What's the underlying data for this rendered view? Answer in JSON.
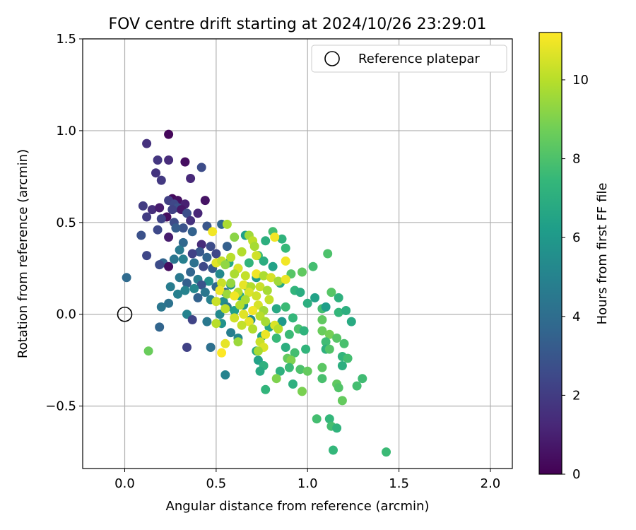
{
  "chart_data": {
    "type": "scatter",
    "title": "FOV centre drift starting at 2024/10/26 23:29:01",
    "xlabel": "Angular distance from reference (arcmin)",
    "ylabel": "Rotation from reference (arcmin)",
    "xlim": [
      -0.23,
      2.12
    ],
    "ylim": [
      -0.84,
      1.5
    ],
    "x_ticks": [
      0.0,
      0.5,
      1.0,
      1.5,
      2.0
    ],
    "x_tick_labels": [
      "0.0",
      "0.5",
      "1.0",
      "1.5",
      "2.0"
    ],
    "y_ticks": [
      -0.5,
      0.0,
      0.5,
      1.0,
      1.5
    ],
    "y_tick_labels": [
      "−0.5",
      "0.0",
      "0.5",
      "1.0",
      "1.5"
    ],
    "grid": true,
    "legend": {
      "position": "top-right",
      "entries": [
        {
          "label": "Reference platepar",
          "marker": "open-circle"
        }
      ]
    },
    "reference_point": {
      "x": 0.0,
      "y": 0.0
    },
    "colorbar": {
      "label": "Hours from first FF file",
      "colormap": "viridis",
      "range": [
        0,
        11.2
      ],
      "ticks": [
        0,
        2,
        4,
        6,
        8,
        10
      ],
      "tick_labels": [
        "0",
        "2",
        "4",
        "6",
        "8",
        "10"
      ]
    },
    "points": [
      {
        "x": 0.24,
        "y": 0.98,
        "h": 0.2
      },
      {
        "x": 0.12,
        "y": 0.93,
        "h": 1.6
      },
      {
        "x": 0.33,
        "y": 0.83,
        "h": 0.4
      },
      {
        "x": 0.18,
        "y": 0.84,
        "h": 1.8
      },
      {
        "x": 0.24,
        "y": 0.84,
        "h": 1.4
      },
      {
        "x": 0.42,
        "y": 0.8,
        "h": 2.6
      },
      {
        "x": 0.17,
        "y": 0.77,
        "h": 1.7
      },
      {
        "x": 0.2,
        "y": 0.73,
        "h": 1.9
      },
      {
        "x": 0.36,
        "y": 0.74,
        "h": 1.3
      },
      {
        "x": 0.26,
        "y": 0.63,
        "h": 0.3
      },
      {
        "x": 0.44,
        "y": 0.62,
        "h": 0.6
      },
      {
        "x": 0.29,
        "y": 0.62,
        "h": 0.5
      },
      {
        "x": 0.24,
        "y": 0.62,
        "h": 2.1
      },
      {
        "x": 0.27,
        "y": 0.6,
        "h": 2.4
      },
      {
        "x": 0.33,
        "y": 0.6,
        "h": 1.0
      },
      {
        "x": 0.1,
        "y": 0.59,
        "h": 2.0
      },
      {
        "x": 0.29,
        "y": 0.58,
        "h": 2.8
      },
      {
        "x": 0.15,
        "y": 0.57,
        "h": 1.5
      },
      {
        "x": 0.19,
        "y": 0.58,
        "h": 0.9
      },
      {
        "x": 0.26,
        "y": 0.57,
        "h": 2.2
      },
      {
        "x": 0.31,
        "y": 0.57,
        "h": 0.7
      },
      {
        "x": 0.4,
        "y": 0.55,
        "h": 1.2
      },
      {
        "x": 0.12,
        "y": 0.53,
        "h": 2.0
      },
      {
        "x": 0.23,
        "y": 0.53,
        "h": 0.4
      },
      {
        "x": 0.34,
        "y": 0.55,
        "h": 2.7
      },
      {
        "x": 0.2,
        "y": 0.52,
        "h": 2.3
      },
      {
        "x": 0.36,
        "y": 0.51,
        "h": 1.6
      },
      {
        "x": 0.27,
        "y": 0.5,
        "h": 2.6
      },
      {
        "x": 0.45,
        "y": 0.48,
        "h": 3.0
      },
      {
        "x": 0.53,
        "y": 0.49,
        "h": 3.7
      },
      {
        "x": 0.32,
        "y": 0.47,
        "h": 2.9
      },
      {
        "x": 0.18,
        "y": 0.46,
        "h": 2.5
      },
      {
        "x": 0.28,
        "y": 0.47,
        "h": 3.3
      },
      {
        "x": 0.37,
        "y": 0.45,
        "h": 3.5
      },
      {
        "x": 0.09,
        "y": 0.43,
        "h": 2.8
      },
      {
        "x": 0.24,
        "y": 0.42,
        "h": 0.9
      },
      {
        "x": 0.42,
        "y": 0.38,
        "h": 1.4
      },
      {
        "x": 0.32,
        "y": 0.39,
        "h": 3.8
      },
      {
        "x": 0.47,
        "y": 0.37,
        "h": 2.6
      },
      {
        "x": 0.56,
        "y": 0.37,
        "h": 3.4
      },
      {
        "x": 0.3,
        "y": 0.35,
        "h": 4.6
      },
      {
        "x": 0.41,
        "y": 0.34,
        "h": 3.1
      },
      {
        "x": 0.5,
        "y": 0.33,
        "h": 2.4
      },
      {
        "x": 0.12,
        "y": 0.32,
        "h": 2.4
      },
      {
        "x": 0.37,
        "y": 0.33,
        "h": 2.2
      },
      {
        "x": 0.45,
        "y": 0.31,
        "h": 3.6
      },
      {
        "x": 0.27,
        "y": 0.3,
        "h": 4.4
      },
      {
        "x": 0.32,
        "y": 0.3,
        "h": 4.9
      },
      {
        "x": 0.38,
        "y": 0.28,
        "h": 4.1
      },
      {
        "x": 0.21,
        "y": 0.28,
        "h": 3.6
      },
      {
        "x": 0.19,
        "y": 0.27,
        "h": 2.6
      },
      {
        "x": 0.24,
        "y": 0.26,
        "h": 0.4
      },
      {
        "x": 0.43,
        "y": 0.26,
        "h": 2.5
      },
      {
        "x": 0.48,
        "y": 0.25,
        "h": 3.2
      },
      {
        "x": 0.36,
        "y": 0.23,
        "h": 3.6
      },
      {
        "x": 0.52,
        "y": 0.22,
        "h": 5.3
      },
      {
        "x": 0.3,
        "y": 0.2,
        "h": 4.5
      },
      {
        "x": 0.01,
        "y": 0.2,
        "h": 3.9
      },
      {
        "x": 0.4,
        "y": 0.19,
        "h": 4.8
      },
      {
        "x": 0.46,
        "y": 0.18,
        "h": 5.6
      },
      {
        "x": 0.34,
        "y": 0.17,
        "h": 3.4
      },
      {
        "x": 0.42,
        "y": 0.16,
        "h": 2.9
      },
      {
        "x": 0.5,
        "y": 0.15,
        "h": 3.8
      },
      {
        "x": 0.25,
        "y": 0.15,
        "h": 4.7
      },
      {
        "x": 0.38,
        "y": 0.14,
        "h": 5.2
      },
      {
        "x": 0.33,
        "y": 0.13,
        "h": 5.0
      },
      {
        "x": 0.44,
        "y": 0.12,
        "h": 4.4
      },
      {
        "x": 0.55,
        "y": 0.12,
        "h": 3.9
      },
      {
        "x": 0.29,
        "y": 0.11,
        "h": 4.9
      },
      {
        "x": 0.4,
        "y": 0.09,
        "h": 3.5
      },
      {
        "x": 0.47,
        "y": 0.08,
        "h": 4.9
      },
      {
        "x": 0.54,
        "y": 0.07,
        "h": 5.5
      },
      {
        "x": 0.24,
        "y": 0.06,
        "h": 4.2
      },
      {
        "x": 0.2,
        "y": 0.04,
        "h": 4.4
      },
      {
        "x": 0.56,
        "y": 0.04,
        "h": 4.6
      },
      {
        "x": 0.34,
        "y": 0.0,
        "h": 5.0
      },
      {
        "x": 0.52,
        "y": 0.0,
        "h": 5.3
      },
      {
        "x": 0.37,
        "y": -0.03,
        "h": 2.3
      },
      {
        "x": 0.45,
        "y": -0.04,
        "h": 4.5
      },
      {
        "x": 0.19,
        "y": -0.07,
        "h": 3.6
      },
      {
        "x": 0.34,
        "y": -0.18,
        "h": 2.2
      },
      {
        "x": 0.47,
        "y": -0.18,
        "h": 4.1
      },
      {
        "x": 0.13,
        "y": -0.2,
        "h": 8.6
      },
      {
        "x": 0.55,
        "y": -0.33,
        "h": 5.0
      },
      {
        "x": 0.53,
        "y": -0.05,
        "h": 5.7
      },
      {
        "x": 0.58,
        "y": -0.1,
        "h": 4.8
      },
      {
        "x": 0.62,
        "y": -0.13,
        "h": 5.2
      },
      {
        "x": 0.6,
        "y": 0.02,
        "h": 6.2
      },
      {
        "x": 0.65,
        "y": 0.05,
        "h": 5.8
      },
      {
        "x": 0.69,
        "y": -0.03,
        "h": 5.3
      },
      {
        "x": 0.63,
        "y": 0.1,
        "h": 6.6
      },
      {
        "x": 0.58,
        "y": 0.16,
        "h": 5.6
      },
      {
        "x": 0.67,
        "y": 0.15,
        "h": 7.0
      },
      {
        "x": 0.72,
        "y": 0.2,
        "h": 6.1
      },
      {
        "x": 0.62,
        "y": 0.25,
        "h": 6.4
      },
      {
        "x": 0.68,
        "y": 0.28,
        "h": 7.3
      },
      {
        "x": 0.57,
        "y": 0.28,
        "h": 6.8
      },
      {
        "x": 0.73,
        "y": 0.32,
        "h": 7.6
      },
      {
        "x": 0.66,
        "y": 0.43,
        "h": 6.3
      },
      {
        "x": 0.77,
        "y": 0.4,
        "h": 7.0
      },
      {
        "x": 0.81,
        "y": 0.45,
        "h": 7.8
      },
      {
        "x": 0.86,
        "y": 0.41,
        "h": 7.2
      },
      {
        "x": 0.88,
        "y": 0.36,
        "h": 7.5
      },
      {
        "x": 0.76,
        "y": 0.29,
        "h": 6.9
      },
      {
        "x": 0.81,
        "y": 0.26,
        "h": 6.4
      },
      {
        "x": 0.91,
        "y": 0.22,
        "h": 8.2
      },
      {
        "x": 0.97,
        "y": 0.23,
        "h": 8.4
      },
      {
        "x": 1.03,
        "y": 0.26,
        "h": 7.8
      },
      {
        "x": 1.11,
        "y": 0.33,
        "h": 8.0
      },
      {
        "x": 0.85,
        "y": 0.17,
        "h": 6.6
      },
      {
        "x": 0.93,
        "y": 0.13,
        "h": 7.3
      },
      {
        "x": 0.96,
        "y": 0.12,
        "h": 6.9
      },
      {
        "x": 1.13,
        "y": 0.12,
        "h": 8.2
      },
      {
        "x": 1.17,
        "y": 0.09,
        "h": 7.1
      },
      {
        "x": 1.04,
        "y": 0.09,
        "h": 6.4
      },
      {
        "x": 1.0,
        "y": 0.06,
        "h": 7.0
      },
      {
        "x": 0.88,
        "y": 0.04,
        "h": 7.6
      },
      {
        "x": 0.83,
        "y": 0.03,
        "h": 6.7
      },
      {
        "x": 1.08,
        "y": 0.03,
        "h": 7.8
      },
      {
        "x": 1.1,
        "y": 0.04,
        "h": 6.2
      },
      {
        "x": 1.17,
        "y": 0.01,
        "h": 7.4
      },
      {
        "x": 1.21,
        "y": 0.02,
        "h": 7.0
      },
      {
        "x": 0.92,
        "y": -0.02,
        "h": 7.4
      },
      {
        "x": 0.86,
        "y": -0.04,
        "h": 6.0
      },
      {
        "x": 1.08,
        "y": -0.03,
        "h": 8.4
      },
      {
        "x": 1.24,
        "y": -0.04,
        "h": 6.8
      },
      {
        "x": 0.79,
        "y": -0.07,
        "h": 6.5
      },
      {
        "x": 0.95,
        "y": -0.08,
        "h": 8.0
      },
      {
        "x": 0.98,
        "y": -0.09,
        "h": 7.2
      },
      {
        "x": 1.08,
        "y": -0.09,
        "h": 8.6
      },
      {
        "x": 1.12,
        "y": -0.11,
        "h": 8.8
      },
      {
        "x": 0.75,
        "y": -0.12,
        "h": 6.3
      },
      {
        "x": 0.83,
        "y": -0.13,
        "h": 7.5
      },
      {
        "x": 0.9,
        "y": -0.11,
        "h": 7.6
      },
      {
        "x": 1.16,
        "y": -0.13,
        "h": 8.2
      },
      {
        "x": 1.1,
        "y": -0.15,
        "h": 7.7
      },
      {
        "x": 1.2,
        "y": -0.16,
        "h": 7.9
      },
      {
        "x": 0.88,
        "y": -0.18,
        "h": 7.0
      },
      {
        "x": 0.99,
        "y": -0.19,
        "h": 7.3
      },
      {
        "x": 1.1,
        "y": -0.19,
        "h": 7.1
      },
      {
        "x": 1.12,
        "y": -0.19,
        "h": 8.1
      },
      {
        "x": 0.93,
        "y": -0.21,
        "h": 7.8
      },
      {
        "x": 0.72,
        "y": -0.2,
        "h": 6.6
      },
      {
        "x": 1.19,
        "y": -0.23,
        "h": 7.3
      },
      {
        "x": 1.22,
        "y": -0.24,
        "h": 7.8
      },
      {
        "x": 0.89,
        "y": -0.24,
        "h": 8.5
      },
      {
        "x": 0.91,
        "y": -0.25,
        "h": 9.0
      },
      {
        "x": 0.73,
        "y": -0.25,
        "h": 6.4
      },
      {
        "x": 0.76,
        "y": -0.28,
        "h": 7.1
      },
      {
        "x": 1.19,
        "y": -0.28,
        "h": 7.0
      },
      {
        "x": 1.08,
        "y": -0.29,
        "h": 8.3
      },
      {
        "x": 0.9,
        "y": -0.29,
        "h": 7.6
      },
      {
        "x": 0.96,
        "y": -0.3,
        "h": 8.0
      },
      {
        "x": 0.85,
        "y": -0.31,
        "h": 7.1
      },
      {
        "x": 1.0,
        "y": -0.31,
        "h": 8.5
      },
      {
        "x": 0.74,
        "y": -0.31,
        "h": 6.8
      },
      {
        "x": 1.08,
        "y": -0.35,
        "h": 7.9
      },
      {
        "x": 1.3,
        "y": -0.35,
        "h": 7.7
      },
      {
        "x": 0.83,
        "y": -0.35,
        "h": 9.0
      },
      {
        "x": 1.16,
        "y": -0.38,
        "h": 8.4
      },
      {
        "x": 0.92,
        "y": -0.38,
        "h": 7.1
      },
      {
        "x": 1.27,
        "y": -0.39,
        "h": 7.8
      },
      {
        "x": 1.17,
        "y": -0.4,
        "h": 8.1
      },
      {
        "x": 0.77,
        "y": -0.41,
        "h": 7.3
      },
      {
        "x": 0.97,
        "y": -0.42,
        "h": 8.9
      },
      {
        "x": 1.19,
        "y": -0.47,
        "h": 8.5
      },
      {
        "x": 1.05,
        "y": -0.57,
        "h": 7.8
      },
      {
        "x": 1.12,
        "y": -0.57,
        "h": 7.4
      },
      {
        "x": 1.13,
        "y": -0.61,
        "h": 7.8
      },
      {
        "x": 1.16,
        "y": -0.62,
        "h": 7.2
      },
      {
        "x": 1.14,
        "y": -0.74,
        "h": 7.4
      },
      {
        "x": 1.43,
        "y": -0.75,
        "h": 7.6
      },
      {
        "x": 0.48,
        "y": 0.45,
        "h": 11.0
      },
      {
        "x": 0.56,
        "y": 0.49,
        "h": 9.8
      },
      {
        "x": 0.68,
        "y": 0.43,
        "h": 9.6
      },
      {
        "x": 0.6,
        "y": 0.42,
        "h": 9.2
      },
      {
        "x": 0.82,
        "y": 0.42,
        "h": 11.0
      },
      {
        "x": 0.7,
        "y": 0.4,
        "h": 10.1
      },
      {
        "x": 0.71,
        "y": 0.37,
        "h": 9.7
      },
      {
        "x": 0.64,
        "y": 0.34,
        "h": 9.9
      },
      {
        "x": 0.72,
        "y": 0.32,
        "h": 10.4
      },
      {
        "x": 0.58,
        "y": 0.31,
        "h": 10.0
      },
      {
        "x": 0.5,
        "y": 0.28,
        "h": 10.7
      },
      {
        "x": 0.53,
        "y": 0.29,
        "h": 10.2
      },
      {
        "x": 0.55,
        "y": 0.27,
        "h": 9.3
      },
      {
        "x": 0.88,
        "y": 0.29,
        "h": 11.0
      },
      {
        "x": 0.62,
        "y": 0.25,
        "h": 10.6
      },
      {
        "x": 0.6,
        "y": 0.22,
        "h": 9.8
      },
      {
        "x": 0.66,
        "y": 0.21,
        "h": 10.2
      },
      {
        "x": 0.72,
        "y": 0.22,
        "h": 11.0
      },
      {
        "x": 0.76,
        "y": 0.21,
        "h": 9.8
      },
      {
        "x": 0.8,
        "y": 0.2,
        "h": 10.5
      },
      {
        "x": 0.84,
        "y": 0.18,
        "h": 9.6
      },
      {
        "x": 0.88,
        "y": 0.19,
        "h": 10.9
      },
      {
        "x": 0.53,
        "y": 0.17,
        "h": 10.3
      },
      {
        "x": 0.58,
        "y": 0.17,
        "h": 9.4
      },
      {
        "x": 0.65,
        "y": 0.16,
        "h": 10.8
      },
      {
        "x": 0.69,
        "y": 0.15,
        "h": 9.9
      },
      {
        "x": 0.74,
        "y": 0.15,
        "h": 10.3
      },
      {
        "x": 0.78,
        "y": 0.13,
        "h": 9.7
      },
      {
        "x": 0.52,
        "y": 0.13,
        "h": 10.9
      },
      {
        "x": 0.62,
        "y": 0.12,
        "h": 10.0
      },
      {
        "x": 0.68,
        "y": 0.12,
        "h": 10.6
      },
      {
        "x": 0.56,
        "y": 0.11,
        "h": 9.5
      },
      {
        "x": 0.72,
        "y": 0.1,
        "h": 10.4
      },
      {
        "x": 0.6,
        "y": 0.1,
        "h": 11.0
      },
      {
        "x": 0.66,
        "y": 0.08,
        "h": 9.8
      },
      {
        "x": 0.79,
        "y": 0.08,
        "h": 10.2
      },
      {
        "x": 0.5,
        "y": 0.07,
        "h": 10.3
      },
      {
        "x": 0.63,
        "y": 0.05,
        "h": 9.9
      },
      {
        "x": 0.73,
        "y": 0.05,
        "h": 10.5
      },
      {
        "x": 0.7,
        "y": 0.02,
        "h": 11.0
      },
      {
        "x": 0.76,
        "y": 0.02,
        "h": 9.6
      },
      {
        "x": 0.65,
        "y": 0.0,
        "h": 10.7
      },
      {
        "x": 0.55,
        "y": 0.03,
        "h": 10.1
      },
      {
        "x": 0.74,
        "y": -0.01,
        "h": 10.0
      },
      {
        "x": 0.6,
        "y": -0.02,
        "h": 10.4
      },
      {
        "x": 0.68,
        "y": -0.04,
        "h": 10.8
      },
      {
        "x": 0.77,
        "y": -0.04,
        "h": 9.7
      },
      {
        "x": 0.64,
        "y": -0.06,
        "h": 10.2
      },
      {
        "x": 0.82,
        "y": -0.06,
        "h": 10.6
      },
      {
        "x": 0.7,
        "y": -0.08,
        "h": 9.9
      },
      {
        "x": 0.5,
        "y": -0.05,
        "h": 10.0
      },
      {
        "x": 0.77,
        "y": -0.11,
        "h": 10.9
      },
      {
        "x": 0.74,
        "y": -0.15,
        "h": 10.3
      },
      {
        "x": 0.62,
        "y": -0.15,
        "h": 9.5
      },
      {
        "x": 0.55,
        "y": -0.16,
        "h": 10.8
      },
      {
        "x": 0.76,
        "y": -0.18,
        "h": 10.6
      },
      {
        "x": 0.53,
        "y": -0.21,
        "h": 11.2
      },
      {
        "x": 0.73,
        "y": -0.2,
        "h": 9.7
      },
      {
        "x": 0.84,
        "y": -0.08,
        "h": 10.0
      }
    ]
  }
}
